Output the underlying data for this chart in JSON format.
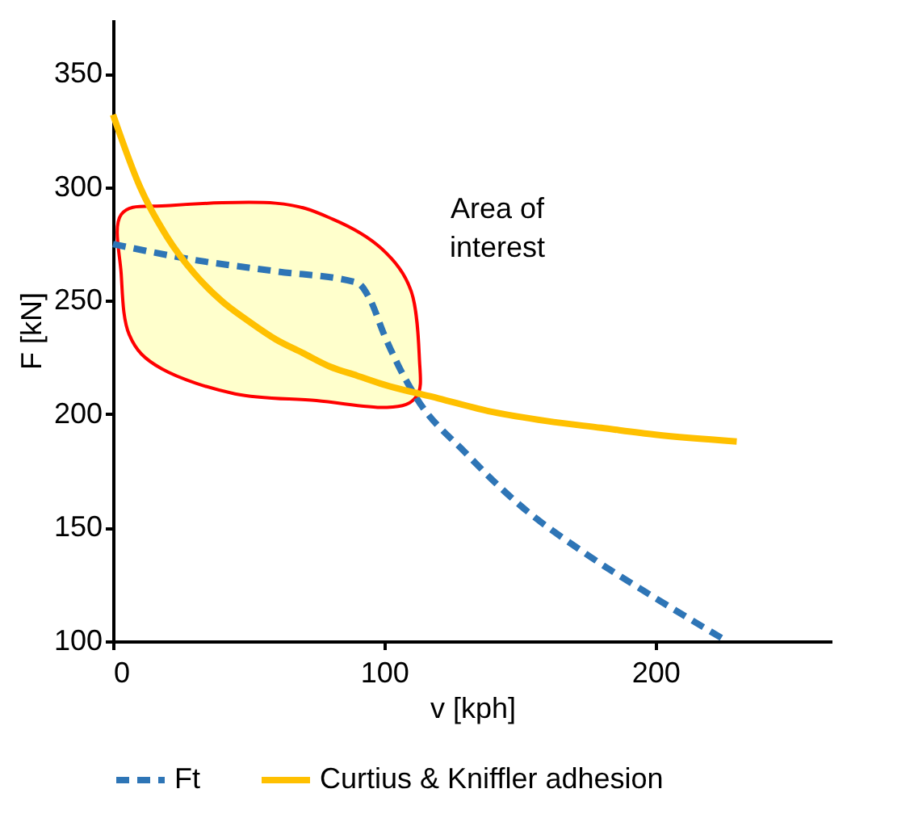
{
  "chart_data": {
    "type": "line",
    "xlabel": "v [kph]",
    "ylabel": "F [kN]",
    "xlim": [
      0,
      265
    ],
    "xticks": [
      0,
      100,
      200
    ],
    "ylim": [
      100,
      374
    ],
    "yticks": [
      100,
      150,
      200,
      250,
      300,
      350
    ],
    "grid": false,
    "legend": "bottom",
    "marker": "none",
    "annotations": [
      "Area of interest"
    ],
    "series": [
      {
        "type": "area",
        "color": "#ff0000",
        "x": [
          3,
          21,
          60,
          81,
          99,
          110,
          113,
          112,
          101,
          75,
          45,
          18,
          6,
          3
        ],
        "values": [
          288,
          292,
          293,
          286,
          273,
          254,
          224,
          208,
          203,
          206,
          209,
          220,
          235,
          262
        ]
      },
      {
        "name": "Ft",
        "color": "#2e75b6",
        "line_style": "dashed",
        "x": [
          0,
          30,
          60,
          90,
          95,
          100,
          105,
          112,
          130,
          150,
          175,
          200,
          225
        ],
        "values": [
          275,
          268,
          263,
          258,
          250,
          235,
          222,
          207,
          183,
          160,
          138,
          119,
          101
        ]
      },
      {
        "name": "Curtius & Kniffler adhesion",
        "color": "#ffc000",
        "line_style": "solid",
        "x": [
          0,
          10,
          20,
          30,
          40,
          50,
          60,
          70,
          80,
          90,
          100,
          120,
          140,
          160,
          180,
          200,
          230
        ],
        "values": [
          332,
          300,
          278,
          262,
          250,
          241,
          233,
          227,
          221,
          217,
          213,
          207,
          201,
          197,
          194,
          191,
          188
        ]
      }
    ]
  }
}
